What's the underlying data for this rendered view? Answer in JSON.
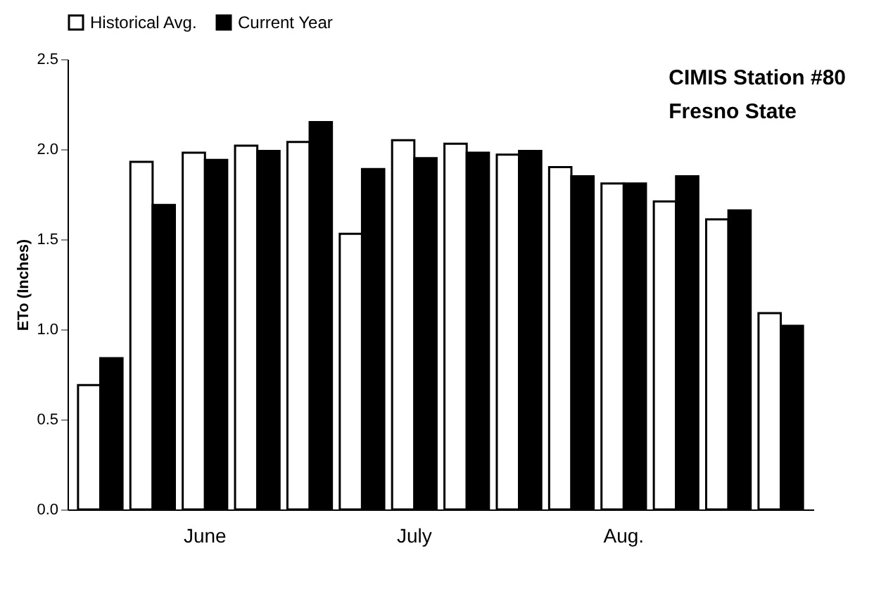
{
  "chart_data": {
    "type": "bar",
    "ylabel": "ETo (Inches)",
    "categories": [
      null,
      null,
      "June",
      null,
      null,
      null,
      "July",
      null,
      null,
      null,
      "Aug.",
      null,
      null,
      null
    ],
    "series": [
      {
        "name": "Historical Avg.",
        "color": "#ffffff",
        "values": [
          0.69,
          1.93,
          1.98,
          2.02,
          2.04,
          1.53,
          2.05,
          2.03,
          1.97,
          1.9,
          1.81,
          1.71,
          1.61,
          1.09
        ]
      },
      {
        "name": "Current Year",
        "color": "#000000",
        "values": [
          0.84,
          1.69,
          1.94,
          1.99,
          2.15,
          1.89,
          1.95,
          1.98,
          1.99,
          1.85,
          1.81,
          1.85,
          1.66,
          1.02
        ]
      }
    ],
    "ylim": [
      0,
      2.5
    ],
    "yticks": [
      {
        "value": 0,
        "label": "0.0"
      },
      0.5,
      {
        "value": 1,
        "label": "1.0"
      },
      1.5,
      {
        "value": 2,
        "label": "2.0"
      },
      2.5
    ],
    "legend": "top",
    "grid": false,
    "annotations": [
      "CIMIS Station #80",
      "Fresno State"
    ]
  }
}
